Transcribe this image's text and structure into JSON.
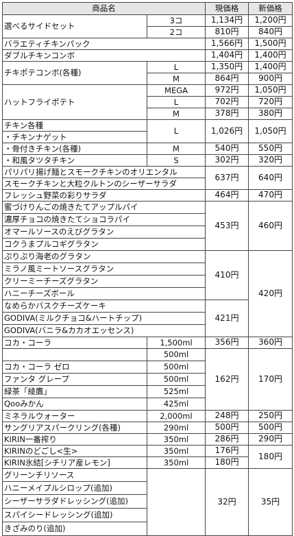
{
  "header": {
    "name": "商品名",
    "current": "現価格",
    "new": "新価格"
  },
  "rows": {
    "r1": {
      "name": "選べるサイドセット",
      "opts": [
        "3コ",
        "2コ"
      ],
      "cur": [
        "1,134円",
        "810円"
      ],
      "new": [
        "1,200円",
        "840円"
      ]
    },
    "r2": {
      "name": "バラエティチキンパック",
      "cur": "1,566円",
      "new": "1,500円"
    },
    "r3": {
      "name": "ダブルチキンコンボ",
      "cur": "1,404円",
      "new": "1,400円"
    },
    "r4": {
      "name": "チキポテコンボ(各種)",
      "opts": [
        "L",
        "M"
      ],
      "cur": [
        "1,350円",
        "864円"
      ],
      "new": [
        "1,400円",
        "900円"
      ]
    },
    "r5": {
      "name": "ハットフライポテト",
      "opts": [
        "MEGA",
        "L",
        "M"
      ],
      "cur": [
        "972円",
        "702円",
        "378円"
      ],
      "new": [
        "1,050円",
        "720円",
        "380円"
      ]
    },
    "r6": {
      "names": [
        "チキン各種",
        "・チキンナゲット",
        "・骨付きチキン(各種)",
        "・和風タツタチキン"
      ],
      "opts": [
        "L",
        "M",
        "S"
      ],
      "cur": [
        "1,026円",
        "540円",
        "302円"
      ],
      "new": [
        "1,050円",
        "550円",
        "320円"
      ]
    },
    "r7": {
      "names": [
        "パリパリ揚げ麺とスモークチキンのオリエンタル",
        "スモークチキンと大粒クルトンのシーザーサラダ"
      ],
      "cur": "637円",
      "new": "640円"
    },
    "r8": {
      "name": "フレッシュ野菜の彩りサラダ",
      "cur": "464円",
      "new": "470円"
    },
    "r9": {
      "names": [
        "蜜づけりんごの焼きたてアップルパイ",
        "濃厚チョコの焼きたてショコラパイ",
        "オマールソースのえびグラタン",
        "コクうまプルコギグラタン"
      ],
      "cur": "453円",
      "new": "460円"
    },
    "r10": {
      "names": [
        "ぷりぷり海老のグラタン",
        "ミラノ風ミートソースグラタン",
        "クリーミーチーズグラタン",
        "ハニーチーズボール"
      ],
      "cur": "410円"
    },
    "r11": {
      "names": [
        "なめらかバスクチーズケーキ",
        "GODIVA(ミルクチョコ&ハートチップ)",
        "GODIVA(バニラ&カカオエッセンス)"
      ],
      "cur": "421円"
    },
    "r10_11_new": "420円",
    "r12": {
      "name": "コカ・コーラ",
      "vol": "1,500ml",
      "cur": "356円",
      "new": "360円"
    },
    "r13": {
      "names": [
        "",
        "コカ・コーラ ゼロ",
        "ファンタ グレープ",
        "緑茶「綾鷹」",
        "Qooみかん"
      ],
      "vols": [
        "500ml",
        "500ml",
        "500ml",
        "525ml",
        "425ml"
      ],
      "cur": "162円",
      "new": "170円"
    },
    "r14": {
      "name": "ミネラルウォーター",
      "vol": "2,000ml",
      "cur": "248円",
      "new": "250円"
    },
    "r15": {
      "name": "サングリアスパークリング(各種)",
      "vol": "290ml",
      "cur": "500円",
      "new": "500円"
    },
    "r16": {
      "name": "KIRIN一番搾り",
      "vol": "350ml",
      "cur": "286円",
      "new": "290円"
    },
    "r17": {
      "name": "KIRINのどごし<生>",
      "vol": "350ml",
      "cur": "176円"
    },
    "r18": {
      "name": "KIRIN氷結[シチリア産レモン]",
      "vol": "350ml",
      "cur": "180円"
    },
    "r17_18_new": "180円",
    "r19": {
      "names": [
        "グリーンチリソース",
        "ハニーメイプルシロップ(追加)",
        "シーザーサラダドレッシング(追加)",
        "スパイシードレッシング(追加)",
        "きざみのり(追加)"
      ],
      "cur": "32円",
      "new": "35円"
    }
  }
}
